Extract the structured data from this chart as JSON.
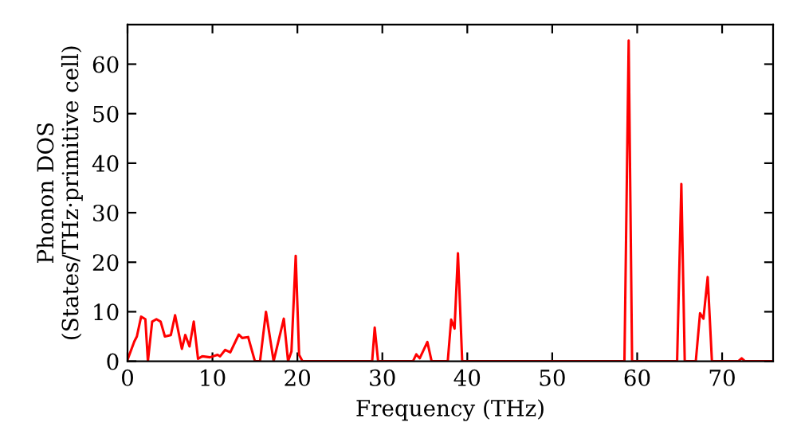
{
  "chart_data": {
    "type": "line",
    "xlabel": "Frequency (THz)",
    "ylabel": "Phonon DOS\n(States/THz·primitive cell)",
    "xlim": [
      0,
      76
    ],
    "ylim": [
      0,
      68
    ],
    "xticks": [
      0,
      10,
      20,
      30,
      40,
      50,
      60,
      70
    ],
    "yticks": [
      0,
      10,
      20,
      30,
      40,
      50,
      60
    ],
    "grid": false,
    "marker": "none",
    "line_style": "solid",
    "series": [
      {
        "color": "#ff0000",
        "x": [
          0,
          0.8,
          1.1,
          1.6,
          2.1,
          2.4,
          2.9,
          3.4,
          3.9,
          4.4,
          5.1,
          5.6,
          6.4,
          6.8,
          7.3,
          7.8,
          8.3,
          8.8,
          9.7,
          10.6,
          10.9,
          11.5,
          12.1,
          13.1,
          13.5,
          14.2,
          15,
          15.6,
          16.3,
          17.2,
          18.4,
          18.9,
          19.3,
          19.8,
          20.2,
          20.6,
          28.8,
          29.1,
          29.5,
          33.6,
          34,
          34.4,
          35.3,
          35.8,
          37.7,
          38.1,
          38.5,
          38.9,
          39.4,
          58.5,
          59,
          59.4,
          64.7,
          65.2,
          65.6,
          66.9,
          67.4,
          67.8,
          68.3,
          68.8,
          71.9,
          72.3,
          72.7,
          76
        ],
        "values": [
          0.3,
          4,
          5,
          9,
          8.5,
          0,
          8,
          8.5,
          8,
          5,
          5.3,
          9.3,
          2.5,
          5.3,
          3,
          8,
          0.5,
          1,
          0.8,
          1.3,
          1,
          2.3,
          1.8,
          5.4,
          4.7,
          4.9,
          0,
          0,
          10,
          0,
          8.6,
          0,
          2,
          21.3,
          1.3,
          0,
          0,
          6.8,
          0,
          0,
          1.4,
          0.6,
          3.9,
          0,
          0,
          8.4,
          6.6,
          21.8,
          0,
          0,
          64.8,
          0,
          0,
          35.8,
          0,
          0,
          9.7,
          8.6,
          17,
          0,
          0,
          0.6,
          0,
          0
        ]
      }
    ]
  }
}
